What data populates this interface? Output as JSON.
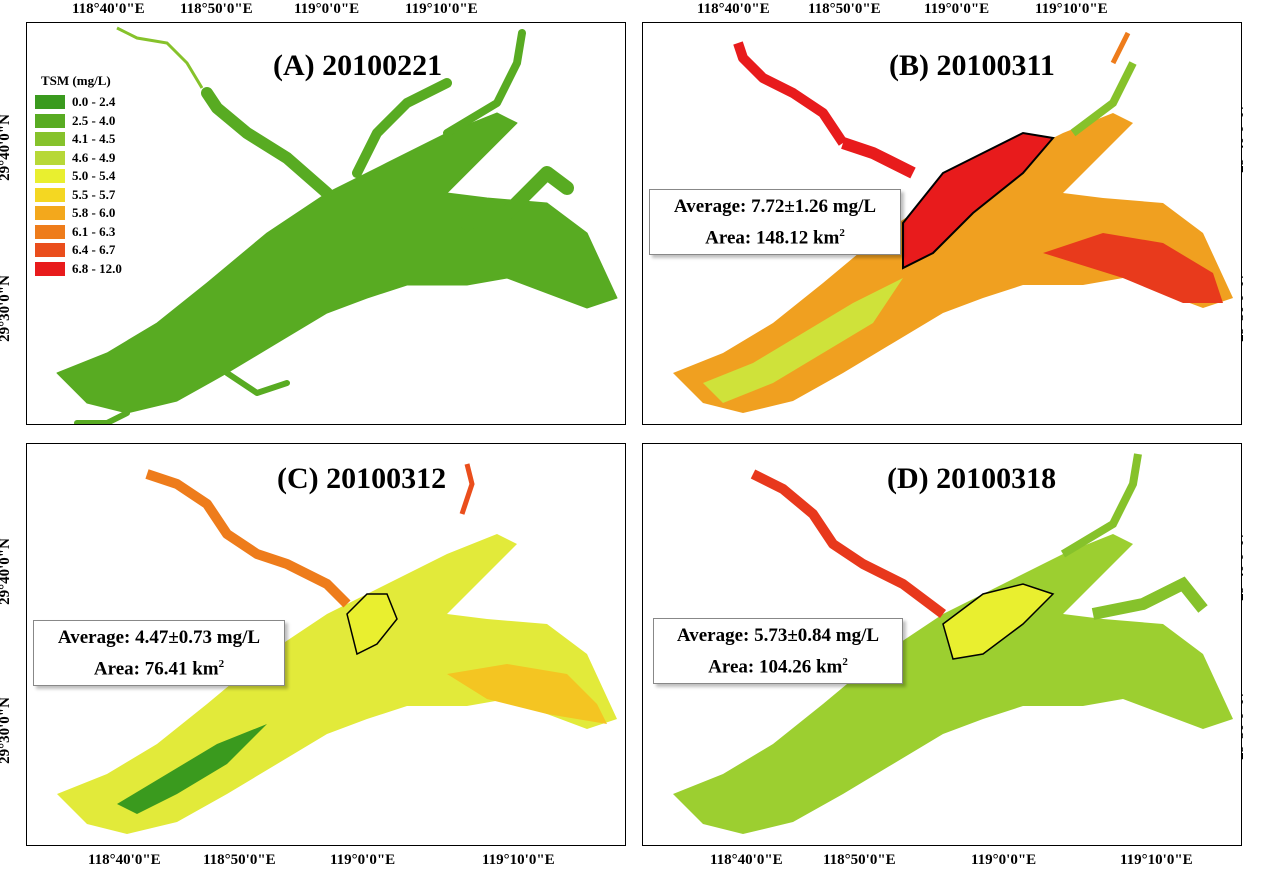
{
  "legend": {
    "title": "TSM (mg/L)",
    "items": [
      {
        "label": "0.0 - 2.4",
        "color": "#3a9a1e"
      },
      {
        "label": "2.5 - 4.0",
        "color": "#58ab22"
      },
      {
        "label": "4.1 - 4.5",
        "color": "#86c22b"
      },
      {
        "label": "4.6 - 4.9",
        "color": "#b7d837"
      },
      {
        "label": "5.0 - 5.4",
        "color": "#e9ef2f"
      },
      {
        "label": "5.5 - 5.7",
        "color": "#f4d722"
      },
      {
        "label": "5.8 - 6.0",
        "color": "#f3a81c"
      },
      {
        "label": "6.1 - 6.3",
        "color": "#ee7c1b"
      },
      {
        "label": "6.4 - 6.7",
        "color": "#ea4e1c"
      },
      {
        "label": "6.8 - 12.0",
        "color": "#e81b1c"
      }
    ]
  },
  "panels": [
    {
      "title": "(A) 20100221"
    },
    {
      "title": "(B) 20100311",
      "average": "Average: 7.72±1.26 mg/L",
      "area": "Area: 148.12 km",
      "area_unit_sup": "2"
    },
    {
      "title": "(C) 20100312",
      "average": "Average: 4.47±0.73 mg/L",
      "area": "Area: 76.41 km",
      "area_unit_sup": "2"
    },
    {
      "title": "(D) 20100318",
      "average": "Average: 5.73±0.84 mg/L",
      "area": "Area: 104.26 km",
      "area_unit_sup": "2"
    }
  ],
  "axes": {
    "lon_ticks": [
      "118°40'0\"E",
      "118°50'0\"E",
      "119°0'0\"E",
      "119°10'0\"E"
    ],
    "lat_ticks": [
      "29°40'0\"N",
      "29°30'0\"N"
    ]
  }
}
